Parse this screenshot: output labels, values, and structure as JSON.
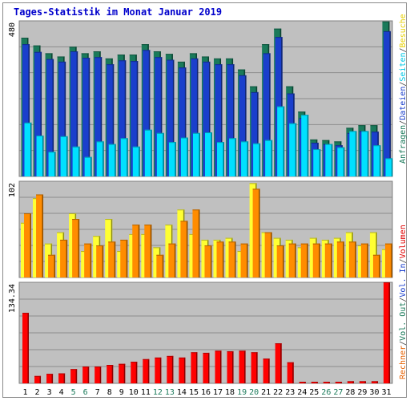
{
  "title": "Tages-Statistik im Monat Januar 2019",
  "chart_data": [
    {
      "type": "bar",
      "panel": "requests",
      "y_scale_label": "480",
      "ylim": [
        0,
        480
      ],
      "grid": true,
      "categories": [
        "1",
        "2",
        "3",
        "4",
        "5",
        "6",
        "7",
        "8",
        "9",
        "10",
        "11",
        "12",
        "13",
        "14",
        "15",
        "16",
        "17",
        "18",
        "19",
        "20",
        "21",
        "22",
        "23",
        "24",
        "25",
        "26",
        "27",
        "28",
        "29",
        "30",
        "31"
      ],
      "legend": [
        {
          "text": "Anfragen",
          "color": "#1a7a5a"
        },
        {
          "text": "/",
          "color": "#444444"
        },
        {
          "text": "Dateien",
          "color": "#1a3fcc"
        },
        {
          "text": "/",
          "color": "#444444"
        },
        {
          "text": "Seiten",
          "color": "#00c8e6"
        },
        {
          "text": "/",
          "color": "#444444"
        },
        {
          "text": "Besuche",
          "color": "#e6d000"
        }
      ],
      "series": [
        {
          "name": "Anfragen",
          "color": "#1a7a5a",
          "values": [
            428,
            404,
            380,
            370,
            400,
            380,
            386,
            364,
            376,
            376,
            408,
            386,
            378,
            354,
            380,
            370,
            364,
            364,
            330,
            278,
            408,
            456,
            278,
            200,
            114,
            112,
            108,
            150,
            158,
            158,
            478
          ]
        },
        {
          "name": "Dateien",
          "color": "#1a3fcc",
          "values": [
            408,
            384,
            362,
            354,
            386,
            366,
            368,
            346,
            358,
            356,
            390,
            368,
            360,
            336,
            364,
            354,
            346,
            346,
            312,
            260,
            380,
            430,
            256,
            180,
            104,
            100,
            96,
            134,
            140,
            138,
            448
          ]
        },
        {
          "name": "Seiten",
          "color": "#00e0ff",
          "values": [
            166,
            126,
            76,
            124,
            92,
            60,
            108,
            100,
            118,
            92,
            144,
            134,
            106,
            120,
            134,
            136,
            106,
            118,
            108,
            102,
            112,
            216,
            164,
            190,
            84,
            100,
            90,
            140,
            140,
            96,
            56
          ]
        }
      ]
    },
    {
      "type": "bar",
      "panel": "visits",
      "y_scale_label": "102",
      "ylim": [
        0,
        102
      ],
      "grid": true,
      "categories": [
        "1",
        "2",
        "3",
        "4",
        "5",
        "6",
        "7",
        "8",
        "9",
        "10",
        "11",
        "12",
        "13",
        "14",
        "15",
        "16",
        "17",
        "18",
        "19",
        "20",
        "21",
        "22",
        "23",
        "24",
        "25",
        "26",
        "27",
        "28",
        "29",
        "30",
        "31"
      ],
      "legend": [
        {
          "text": "Rechner",
          "color": "#e66000"
        },
        {
          "text": "/",
          "color": "#444444"
        },
        {
          "text": "Vol. Out",
          "color": "#1a7a5a"
        },
        {
          "text": "/",
          "color": "#444444"
        },
        {
          "text": "Vol. In",
          "color": "#1a3fcc"
        },
        {
          "text": "/",
          "color": "#444444"
        },
        {
          "text": "Volumen",
          "color": "#e00000"
        }
      ],
      "series": [
        {
          "name": "Besuche",
          "color": "#ffff33",
          "values": [
            58,
            84,
            36,
            48,
            68,
            28,
            44,
            62,
            28,
            46,
            46,
            32,
            56,
            72,
            46,
            40,
            40,
            42,
            28,
            100,
            48,
            42,
            40,
            32,
            42,
            40,
            42,
            48,
            34,
            48,
            30
          ]
        },
        {
          "name": "Rechner",
          "color": "#ff8c00",
          "values": [
            68,
            88,
            24,
            40,
            62,
            36,
            34,
            38,
            40,
            56,
            56,
            24,
            36,
            60,
            72,
            34,
            38,
            38,
            36,
            94,
            48,
            34,
            36,
            36,
            36,
            36,
            38,
            38,
            36,
            24,
            36
          ]
        }
      ]
    },
    {
      "type": "bar",
      "panel": "volume",
      "y_scale_label": "134.34",
      "ylim": [
        0,
        192
      ],
      "grid": true,
      "categories": [
        "1",
        "2",
        "3",
        "4",
        "5",
        "6",
        "7",
        "8",
        "9",
        "10",
        "11",
        "12",
        "13",
        "14",
        "15",
        "16",
        "17",
        "18",
        "19",
        "20",
        "21",
        "22",
        "23",
        "24",
        "25",
        "26",
        "27",
        "28",
        "29",
        "30",
        "31"
      ],
      "series": [
        {
          "name": "Volumen",
          "color": "#ff0000",
          "values": [
            134,
            14,
            18,
            19,
            27,
            32,
            32,
            35,
            37,
            41,
            46,
            49,
            52,
            49,
            59,
            58,
            62,
            61,
            62,
            59,
            47,
            76,
            40,
            3,
            3,
            3,
            3,
            4,
            4,
            4,
            192
          ]
        }
      ]
    }
  ],
  "x_label_colors": {
    "normal": "#000000",
    "weekend": "#1a7a5a"
  },
  "weekend_days": [
    "5",
    "6",
    "12",
    "13",
    "19",
    "20",
    "26",
    "27"
  ]
}
